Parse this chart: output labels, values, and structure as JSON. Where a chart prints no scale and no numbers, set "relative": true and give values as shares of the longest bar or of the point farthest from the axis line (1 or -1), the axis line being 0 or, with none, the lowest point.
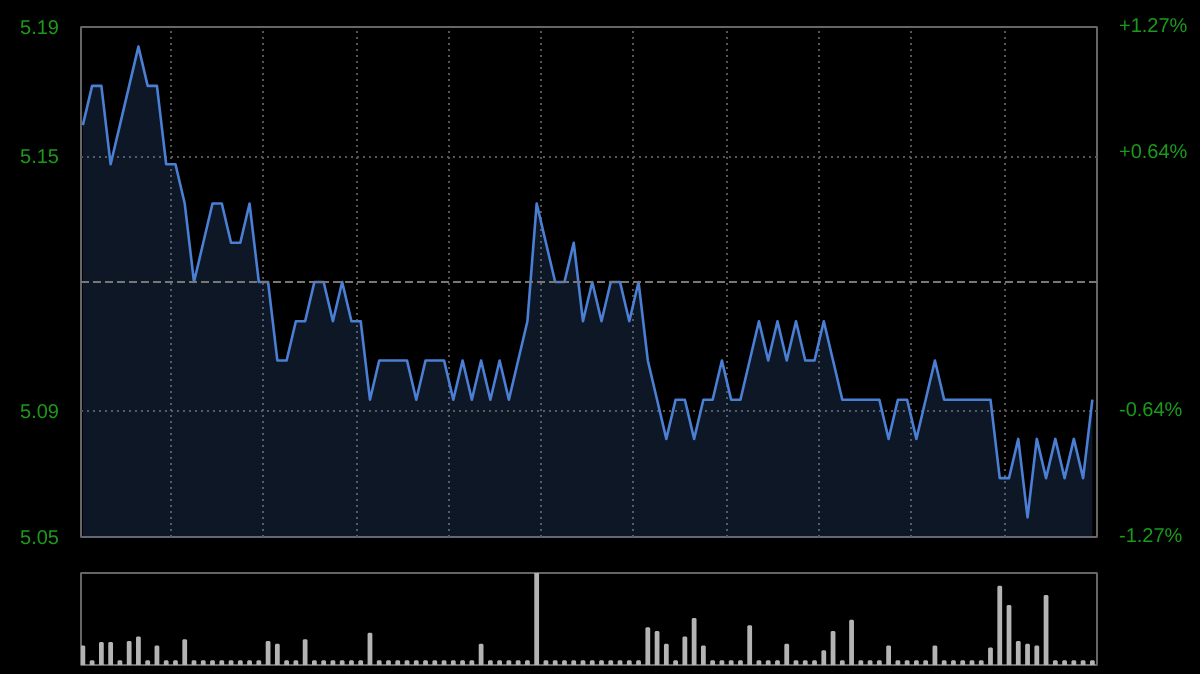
{
  "chart_data": [
    {
      "type": "area",
      "categories": [
        null,
        null,
        null,
        null,
        null,
        null,
        null,
        null,
        null,
        null,
        null,
        null,
        null,
        null,
        null,
        null,
        null,
        null,
        null,
        null,
        null,
        null,
        null,
        null,
        null,
        null,
        null,
        null,
        null,
        null,
        null,
        null,
        null,
        null,
        null,
        null,
        null,
        null,
        null,
        null,
        null,
        null,
        null,
        null,
        null,
        null,
        null,
        null,
        null,
        null,
        null,
        null,
        null,
        null,
        null,
        null,
        null,
        null,
        null,
        null,
        null,
        null,
        null,
        null,
        null,
        null,
        null,
        null,
        null,
        null,
        null,
        null,
        null,
        null,
        null,
        null,
        null,
        null,
        null,
        null,
        null,
        null,
        null,
        null,
        null,
        null,
        null,
        null,
        null,
        null,
        null,
        null,
        null,
        null,
        null,
        null,
        null,
        null,
        null,
        null,
        null,
        null,
        null,
        null,
        null,
        null,
        null,
        null,
        null,
        null
      ],
      "series": [
        {
          "color": "#4a7fd4",
          "values": [
            5.16,
            5.17,
            5.17,
            5.15,
            5.16,
            5.17,
            5.18,
            5.17,
            5.17,
            5.15,
            5.15,
            5.14,
            5.12,
            5.13,
            5.14,
            5.14,
            5.13,
            5.13,
            5.14,
            5.12,
            5.12,
            5.1,
            5.1,
            5.11,
            5.11,
            5.12,
            5.12,
            5.11,
            5.12,
            5.11,
            5.11,
            5.09,
            5.1,
            5.1,
            5.1,
            5.1,
            5.09,
            5.1,
            5.1,
            5.1,
            5.09,
            5.1,
            5.09,
            5.1,
            5.09,
            5.1,
            5.09,
            5.1,
            5.11,
            5.14,
            5.13,
            5.12,
            5.12,
            5.13,
            5.11,
            5.12,
            5.11,
            5.12,
            5.12,
            5.11,
            5.12,
            5.1,
            5.09,
            5.08,
            5.09,
            5.09,
            5.08,
            5.09,
            5.09,
            5.1,
            5.09,
            5.09,
            5.1,
            5.11,
            5.1,
            5.11,
            5.1,
            5.11,
            5.1,
            5.1,
            5.11,
            5.1,
            5.09,
            5.09,
            5.09,
            5.09,
            5.09,
            5.08,
            5.09,
            5.09,
            5.08,
            5.09,
            5.1,
            5.09,
            5.09,
            5.09,
            5.09,
            5.09,
            5.09,
            5.07,
            5.07,
            5.08,
            5.06,
            5.08,
            5.07,
            5.08,
            5.07,
            5.08,
            5.07,
            5.09
          ]
        }
      ],
      "ylim": [
        5.055,
        5.185
      ],
      "yticks": [
        {
          "value": 5.185,
          "label": "5.19"
        },
        {
          "value": 5.152,
          "label": "5.15"
        },
        {
          "value": 5.087,
          "label": "5.09"
        },
        {
          "value": 5.055,
          "label": "5.05"
        }
      ],
      "y2lim": [
        -1.27,
        1.27
      ],
      "y2ticks": [
        {
          "value": 1.27,
          "label": "+1.27%"
        },
        {
          "value": 0.64,
          "label": "+0.64%"
        },
        {
          "value": -0.64,
          "label": "-0.64%"
        },
        {
          "value": -1.27,
          "label": "-1.27%"
        }
      ],
      "ref_lines": [
        {
          "axis": "y",
          "value": 5.12,
          "line_style": "dashed"
        }
      ],
      "grid": true,
      "tick_labels": "y"
    },
    {
      "type": "bar",
      "relative": true,
      "color": "#b4b4b4",
      "categories": [
        null,
        null,
        null,
        null,
        null,
        null,
        null,
        null,
        null,
        null,
        null,
        null,
        null,
        null,
        null,
        null,
        null,
        null,
        null,
        null,
        null,
        null,
        null,
        null,
        null,
        null,
        null,
        null,
        null,
        null,
        null,
        null,
        null,
        null,
        null,
        null,
        null,
        null,
        null,
        null,
        null,
        null,
        null,
        null,
        null,
        null,
        null,
        null,
        null,
        null,
        null,
        null,
        null,
        null,
        null,
        null,
        null,
        null,
        null,
        null,
        null,
        null,
        null,
        null,
        null,
        null,
        null,
        null,
        null,
        null,
        null,
        null,
        null,
        null,
        null,
        null,
        null,
        null,
        null,
        null,
        null,
        null,
        null,
        null,
        null,
        null,
        null,
        null,
        null,
        null,
        null,
        null,
        null,
        null,
        null,
        null,
        null,
        null,
        null,
        null,
        null,
        null,
        null,
        null,
        null,
        null,
        null,
        null,
        null,
        null
      ],
      "values": [
        0.2,
        0.04,
        0.24,
        0.24,
        0.04,
        0.25,
        0.3,
        0.04,
        0.2,
        0.04,
        0.04,
        0.27,
        0.04,
        0.04,
        0.04,
        0.04,
        0.04,
        0.04,
        0.04,
        0.04,
        0.25,
        0.22,
        0.04,
        0.04,
        0.27,
        0.04,
        0.04,
        0.04,
        0.04,
        0.04,
        0.04,
        0.34,
        0.04,
        0.04,
        0.04,
        0.04,
        0.04,
        0.04,
        0.04,
        0.04,
        0.04,
        0.04,
        0.04,
        0.22,
        0.04,
        0.04,
        0.04,
        0.04,
        0.04,
        1,
        0.04,
        0.04,
        0.04,
        0.04,
        0.04,
        0.04,
        0.04,
        0.04,
        0.04,
        0.04,
        0.04,
        0.4,
        0.36,
        0.22,
        0.04,
        0.3,
        0.5,
        0.2,
        0.04,
        0.04,
        0.04,
        0.04,
        0.42,
        0.04,
        0.04,
        0.04,
        0.22,
        0.04,
        0.04,
        0.04,
        0.15,
        0.36,
        0.04,
        0.48,
        0.04,
        0.04,
        0.04,
        0.2,
        0.04,
        0.04,
        0.04,
        0.04,
        0.2,
        0.04,
        0.04,
        0.04,
        0.04,
        0.04,
        0.18,
        0.85,
        0.64,
        0.25,
        0.22,
        0.2,
        0.75,
        0.04,
        0.04,
        0.04,
        0.04,
        0.04
      ],
      "tick_labels": false
    }
  ]
}
